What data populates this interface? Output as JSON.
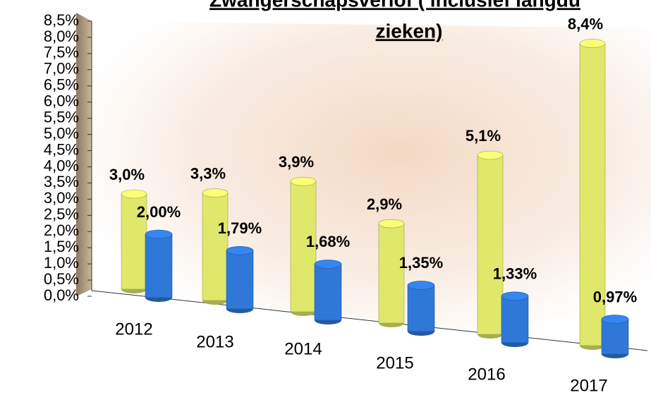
{
  "chart_data": {
    "type": "bar3d",
    "title_lines": [
      "Zwangerschapsverlof ( inclusief langdu",
      "zieken)"
    ],
    "categories": [
      "2012",
      "2013",
      "2014",
      "2015",
      "2016",
      "2017"
    ],
    "series": [
      {
        "color": "#dfe86a",
        "values": [
          3.0,
          3.3,
          3.9,
          2.9,
          5.1,
          8.4
        ],
        "value_labels": [
          "3,0%",
          "3,3%",
          "3,9%",
          "2,9%",
          "5,1%",
          "8,4%"
        ]
      },
      {
        "color": "#2f78d8",
        "values": [
          2.0,
          1.79,
          1.68,
          1.35,
          1.33,
          0.97
        ],
        "value_labels": [
          "2,00%",
          "1,79%",
          "1,68%",
          "1,35%",
          "1,33%",
          "0,97%"
        ]
      }
    ],
    "ylim": [
      0,
      8.5
    ],
    "yticks": [
      {
        "value": 0,
        "label": "0,0%"
      },
      {
        "value": 0.5,
        "label": "0,5%"
      },
      {
        "value": 1,
        "label": "1,0%"
      },
      {
        "value": 1.5,
        "label": "1,5%"
      },
      {
        "value": 2,
        "label": "2,0%"
      },
      {
        "value": 2.5,
        "label": "2,5%"
      },
      {
        "value": 3,
        "label": "3,0%"
      },
      {
        "value": 3.5,
        "label": "3,5%"
      },
      {
        "value": 4,
        "label": "4,0%"
      },
      {
        "value": 4.5,
        "label": "4,5%"
      },
      {
        "value": 5,
        "label": "5,0%"
      },
      {
        "value": 5.5,
        "label": "5,5%"
      },
      {
        "value": 6,
        "label": "6,0%"
      },
      {
        "value": 6.5,
        "label": "6,5%"
      },
      {
        "value": 7,
        "label": "7,0%"
      },
      {
        "value": 7.5,
        "label": "7,5%"
      },
      {
        "value": 8,
        "label": "8,0%"
      },
      {
        "value": 8.5,
        "label": "8,5%"
      }
    ]
  }
}
